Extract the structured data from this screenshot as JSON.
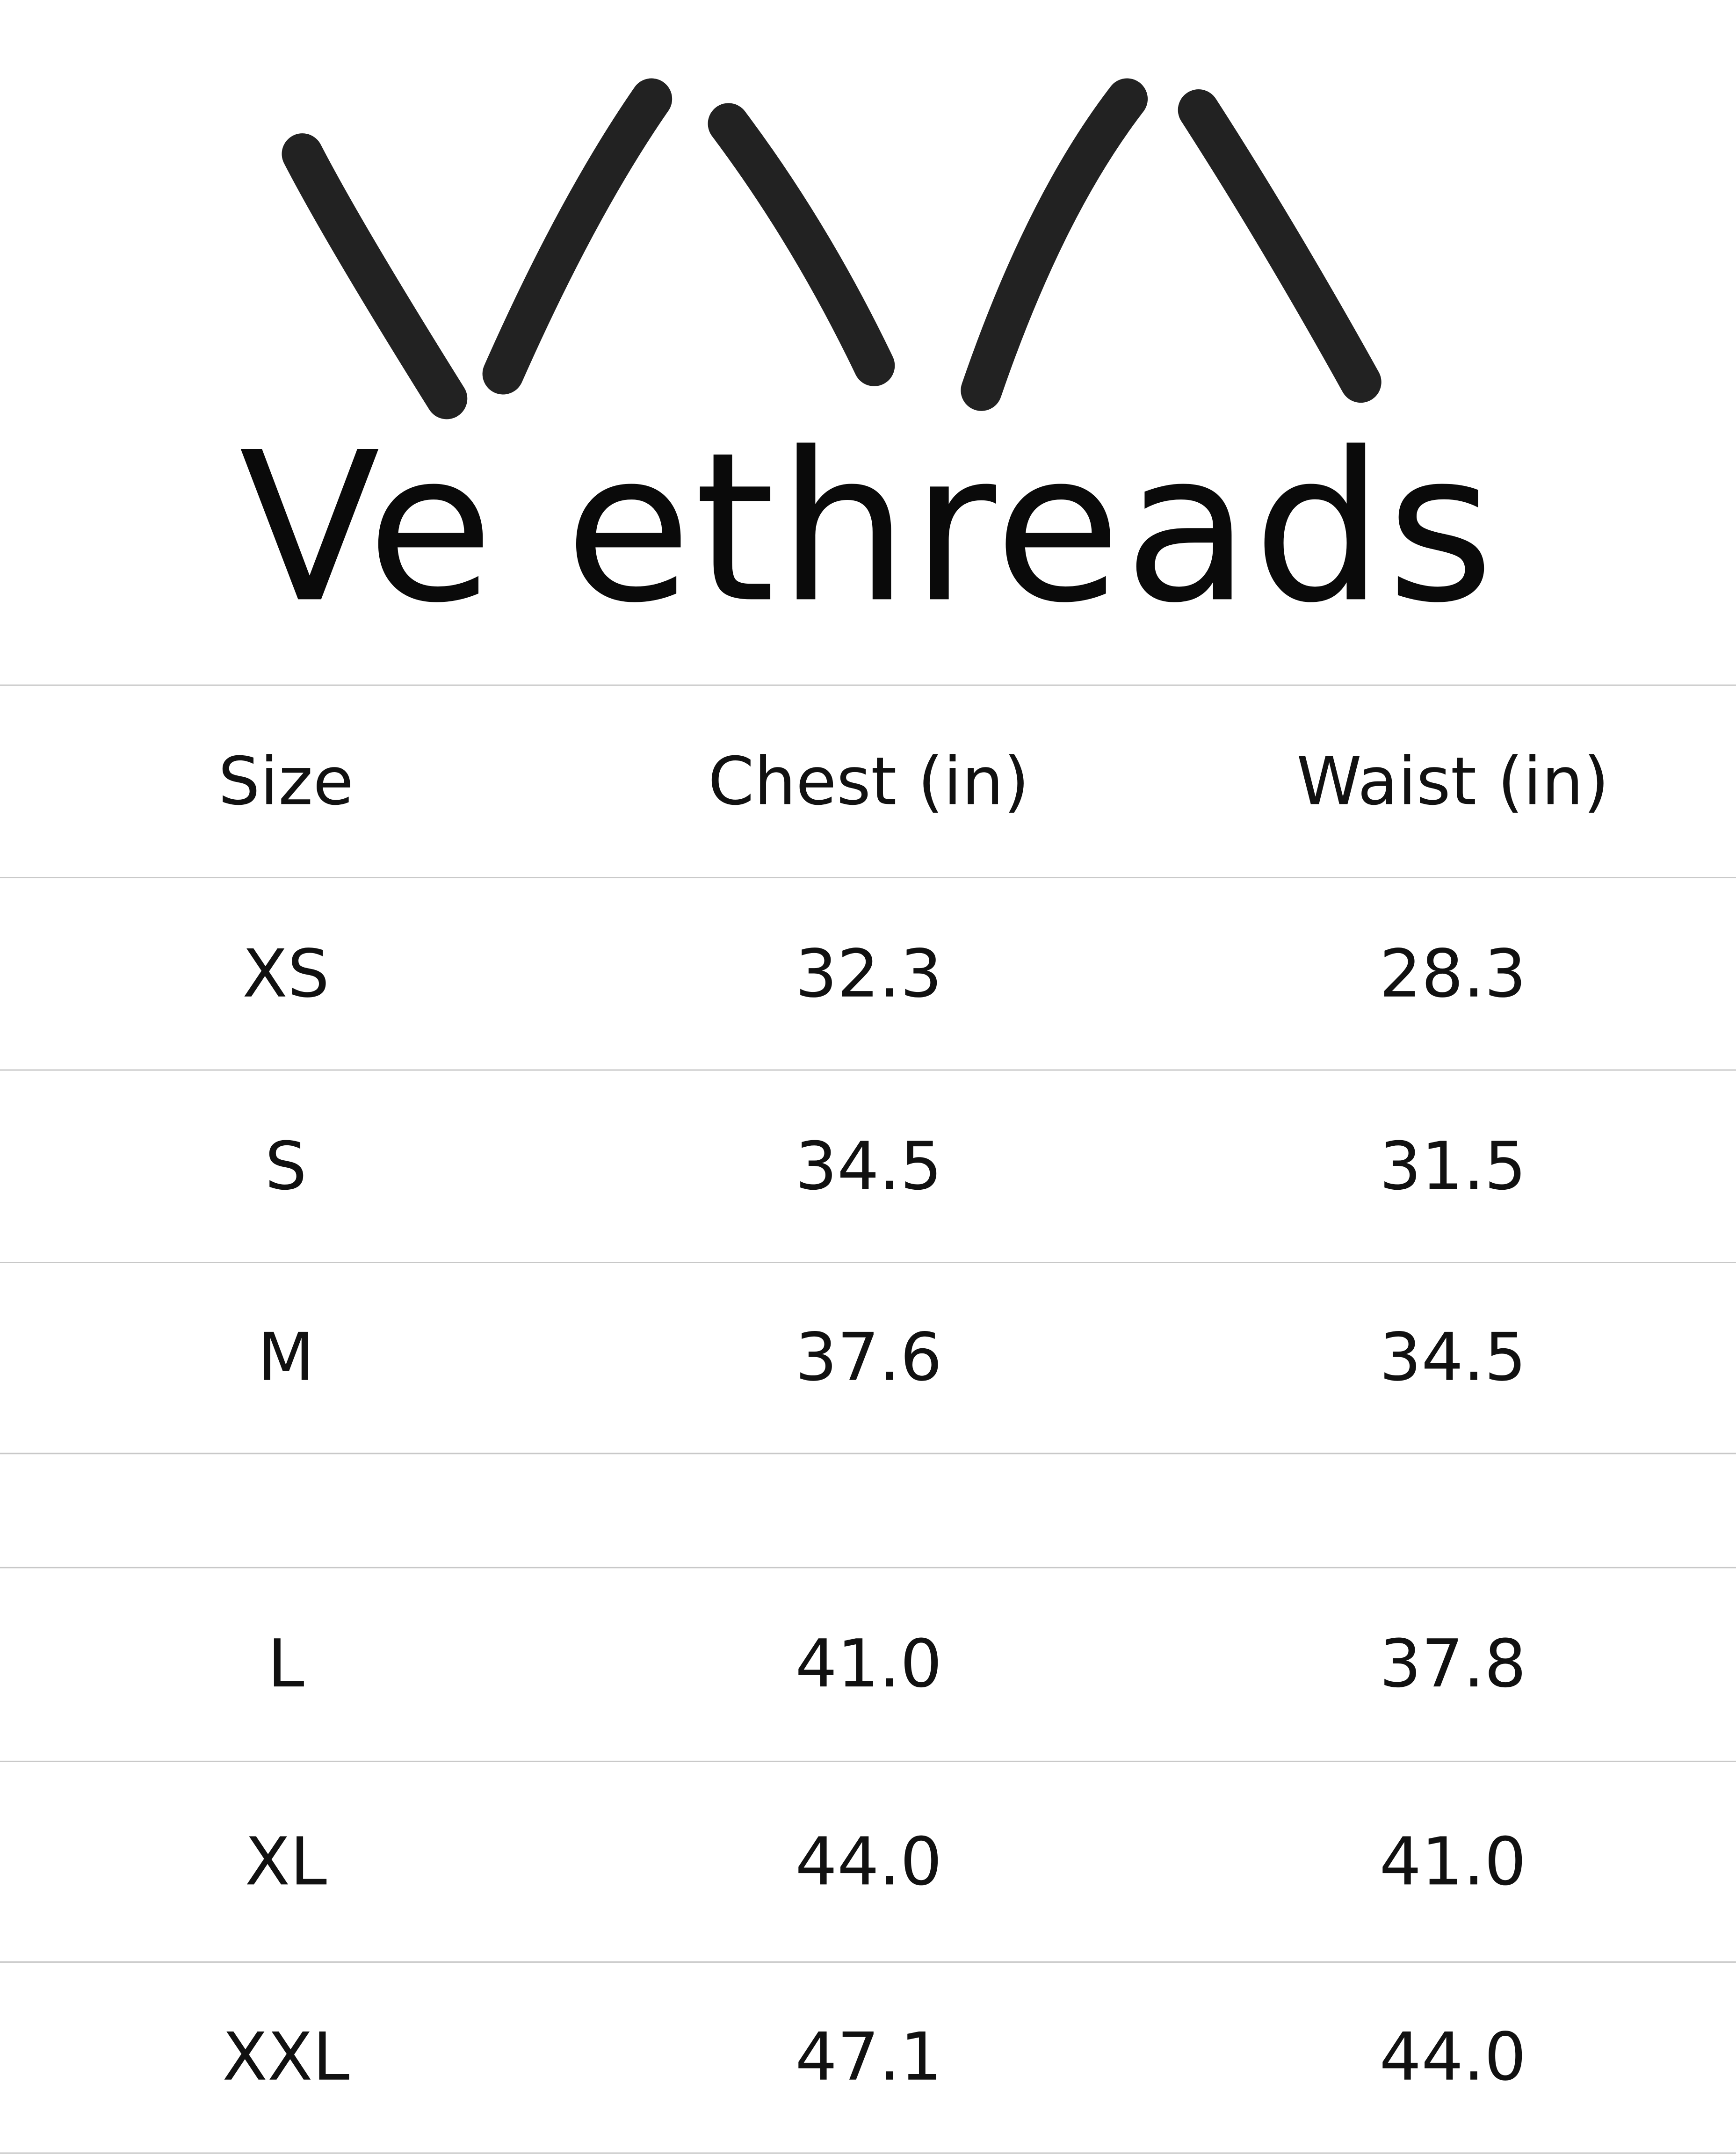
{
  "brand": {
    "name": "Ve ethreads",
    "logo_color": "#222222"
  },
  "table": {
    "headers": [
      "Size",
      "Chest (in)",
      "Waist (in)"
    ],
    "rows": [
      [
        "XS",
        "32.3",
        "28.3"
      ],
      [
        "S",
        "34.5",
        "31.5"
      ],
      [
        "M",
        "37.6",
        "34.5"
      ],
      [
        "",
        "",
        ""
      ],
      [
        "L",
        "41.0",
        "37.8"
      ],
      [
        "XL",
        "44.0",
        "41.0"
      ],
      [
        "XXL",
        "47.1",
        "44.0"
      ]
    ]
  }
}
